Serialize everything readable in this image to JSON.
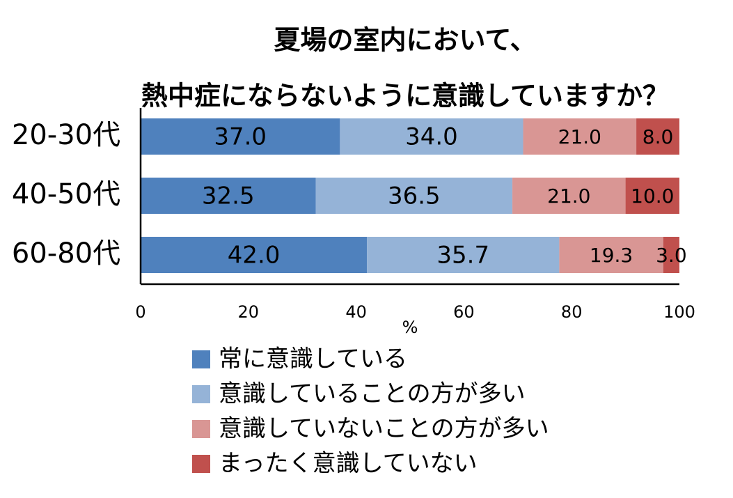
{
  "chart_data": {
    "type": "bar",
    "orientation": "horizontal",
    "stacked": true,
    "title": [
      "夏場の室内において、",
      "熱中症にならないように意識していますか？"
    ],
    "categories": [
      "20-30代",
      "40-50代",
      "60-80代"
    ],
    "series": [
      {
        "name": "常に意識している",
        "color": "#4F81BD",
        "values": [
          37.0,
          32.5,
          42.0
        ],
        "labels": [
          "37.0",
          "32.5",
          "42.0"
        ]
      },
      {
        "name": "意識していることの方が多い",
        "color": "#95B3D7",
        "values": [
          34.0,
          36.5,
          35.7
        ],
        "labels": [
          "34.0",
          "36.5",
          "35.7"
        ]
      },
      {
        "name": "意識していないことの方が多い",
        "color": "#D99694",
        "values": [
          21.0,
          21.0,
          19.3
        ],
        "labels": [
          "21.0",
          "21.0",
          "19.3"
        ]
      },
      {
        "name": "まったく意識していない",
        "color": "#C0504D",
        "values": [
          8.0,
          10.0,
          3.0
        ],
        "labels": [
          "8.0",
          "10.0",
          "3.0"
        ]
      }
    ],
    "xlim": [
      0,
      100
    ],
    "xticks": [
      "0",
      "20",
      "40",
      "60",
      "80",
      "100"
    ],
    "xlabel": "%",
    "ylabel": "",
    "grid": false,
    "legend_position": "bottom"
  }
}
